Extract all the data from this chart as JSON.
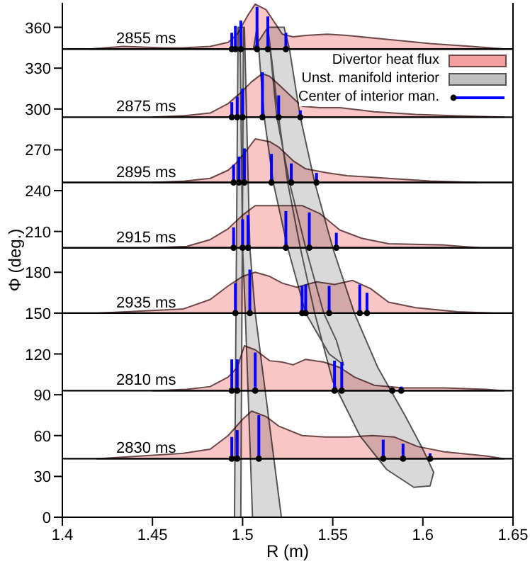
{
  "chart_data": {
    "type": "area",
    "xlabel": "R (m)",
    "ylabel": "Φ (deg.)",
    "xlim": [
      1.4,
      1.65
    ],
    "xticks": [
      1.4,
      1.45,
      1.5,
      1.55,
      1.6,
      1.65
    ],
    "ylim": [
      0,
      378
    ],
    "yticks": [
      0,
      30,
      60,
      90,
      120,
      150,
      180,
      210,
      240,
      270,
      300,
      330,
      360
    ],
    "legend": "top right",
    "ref_lines": [
      {
        "axis": "y",
        "value": 344,
        "label": "2855 ms",
        "color": "#000000"
      },
      {
        "axis": "y",
        "value": 294,
        "label": "2875 ms",
        "color": "#000000"
      },
      {
        "axis": "y",
        "value": 246,
        "label": "2895 ms",
        "color": "#000000"
      },
      {
        "axis": "y",
        "value": 198,
        "label": "2915 ms",
        "color": "#000000"
      },
      {
        "axis": "y",
        "value": 150,
        "label": "2935 ms",
        "color": "#000000"
      },
      {
        "axis": "y",
        "value": 93,
        "label": "2810 ms",
        "color": "#000000"
      },
      {
        "axis": "y",
        "value": 43,
        "label": "2830 ms",
        "color": "#000000"
      }
    ],
    "series": [
      {
        "name": "Divertor heat flux",
        "color": "#f4a0a0",
        "x": [
          1.415,
          1.434,
          1.456,
          1.467,
          1.482,
          1.492,
          1.497,
          1.503,
          1.507,
          1.513,
          1.518,
          1.522,
          1.528,
          1.535,
          1.547,
          1.558,
          1.581,
          1.604,
          1.627,
          1.646,
          null,
          1.45,
          1.467,
          1.482,
          1.492,
          1.499,
          1.505,
          1.511,
          1.515,
          1.52,
          1.528,
          1.533,
          1.543,
          1.554,
          1.573,
          1.596,
          1.619,
          1.645,
          null,
          1.45,
          1.468,
          1.482,
          1.492,
          1.497,
          1.503,
          1.507,
          1.515,
          1.52,
          1.528,
          1.535,
          1.547,
          1.558,
          1.581,
          1.604,
          1.63,
          null,
          1.45,
          1.469,
          1.482,
          1.492,
          1.5,
          1.507,
          1.52,
          1.533,
          1.543,
          1.554,
          1.566,
          1.581,
          1.612,
          1.632,
          null,
          1.419,
          1.467,
          1.482,
          1.492,
          1.5,
          1.507,
          1.515,
          1.522,
          1.53,
          1.541,
          1.551,
          1.561,
          1.571,
          1.581,
          1.596,
          1.619,
          1.64,
          null,
          1.45,
          1.469,
          1.482,
          1.492,
          1.497,
          1.501,
          1.507,
          1.515,
          1.522,
          1.528,
          1.535,
          1.545,
          1.554,
          1.562,
          1.573,
          1.589,
          1.612,
          1.635,
          1.645,
          null,
          1.419,
          1.467,
          1.482,
          1.492,
          1.5,
          1.505,
          1.513,
          1.52,
          1.533,
          1.546,
          1.559,
          1.572,
          1.584,
          1.597,
          1.612,
          1.635,
          1.645
        ],
        "values": [
          344,
          346,
          345,
          345,
          346,
          349,
          355,
          369,
          377,
          373,
          363,
          355,
          353,
          354,
          355,
          354,
          351,
          348,
          346,
          344,
          null,
          294,
          295,
          297,
          304,
          312,
          320,
          326,
          324,
          318,
          308,
          302,
          301,
          301,
          298,
          296,
          295,
          294,
          null,
          246,
          247,
          249,
          255,
          261,
          271,
          278,
          276,
          272,
          262,
          256,
          253,
          251,
          249,
          247,
          246,
          null,
          198,
          199,
          204,
          212,
          222,
          229,
          229,
          229,
          223,
          211,
          205,
          201,
          200,
          198,
          null,
          150,
          153,
          160,
          170,
          177,
          180,
          177,
          172,
          169,
          173,
          171,
          174,
          168,
          158,
          154,
          151,
          150,
          null,
          93,
          94,
          96,
          103,
          110,
          126,
          123,
          115,
          114,
          112,
          116,
          114,
          110,
          103,
          97,
          95,
          95,
          94,
          93,
          null,
          43,
          47,
          50,
          60,
          72,
          78,
          74,
          67,
          60,
          59,
          59,
          60,
          59,
          52,
          48,
          45,
          43
        ]
      },
      {
        "name": "Unst. manifold interior",
        "color": "#c0c0c0",
        "x": [
          1.4955,
          1.499,
          1.5005,
          1.4975,
          null,
          1.5055,
          1.5215,
          1.507,
          1.504,
          1.501,
          1.4985,
          1.5,
          1.5015,
          null,
          1.514,
          1.52,
          1.525,
          1.532,
          1.54,
          1.55,
          1.565,
          1.58,
          1.595,
          1.604,
          1.606,
          1.6,
          1.59,
          1.575,
          1.562,
          1.55,
          1.54,
          1.532,
          1.526,
          1.523,
          null,
          1.506,
          1.508,
          1.512,
          1.517,
          1.525,
          1.535,
          1.548,
          1.556,
          1.552,
          1.545,
          1.535,
          1.526,
          1.519,
          1.514
        ],
        "values": [
          0,
          0,
          360,
          360,
          null,
          0,
          0,
          150,
          198,
          360,
          360,
          198,
          150,
          null,
          360,
          294,
          246,
          198,
          150,
          100,
          60,
          35,
          22,
          23,
          33,
          50,
          75,
          110,
          150,
          198,
          246,
          294,
          344,
          360,
          null,
          344,
          360,
          294,
          246,
          198,
          150,
          120,
          112,
          130,
          150,
          198,
          246,
          294,
          360
        ]
      },
      {
        "type": "scatter",
        "name": "Center of interior man.",
        "color": "#000000",
        "marker": "circle",
        "x": [
          1.494,
          1.496,
          1.499,
          1.508,
          1.514,
          1.524,
          1.494,
          1.497,
          1.5,
          1.511,
          1.52,
          1.532,
          1.495,
          1.498,
          1.501,
          1.516,
          1.527,
          1.541,
          1.495,
          1.5,
          1.503,
          1.524,
          1.537,
          1.552,
          1.496,
          1.504,
          1.533,
          1.535,
          1.548,
          1.565,
          1.569,
          1.494,
          1.497,
          1.507,
          1.551,
          1.555,
          1.583,
          1.588,
          1.494,
          1.497,
          1.509,
          1.578,
          1.589,
          1.604
        ],
        "values": [
          344,
          344,
          344,
          344,
          344,
          344,
          294,
          294,
          294,
          294,
          294,
          294,
          246,
          246,
          246,
          246,
          246,
          246,
          198,
          198,
          198,
          198,
          198,
          198,
          150,
          150,
          150,
          150,
          150,
          150,
          150,
          93,
          93,
          93,
          93,
          93,
          93,
          93,
          43,
          43,
          43,
          43,
          43,
          43
        ],
        "errors": [
          [
            344,
            356
          ],
          [
            344,
            361
          ],
          [
            344,
            365
          ],
          [
            344,
            375
          ],
          [
            344,
            368
          ],
          [
            344,
            356
          ],
          [
            294,
            305
          ],
          [
            294,
            309
          ],
          [
            294,
            315
          ],
          [
            294,
            327
          ],
          [
            294,
            310
          ],
          [
            294,
            299
          ],
          [
            246,
            259
          ],
          [
            246,
            265
          ],
          [
            246,
            271
          ],
          [
            246,
            267
          ],
          [
            246,
            260
          ],
          [
            246,
            253
          ],
          [
            198,
            213
          ],
          [
            198,
            219
          ],
          [
            198,
            222
          ],
          [
            198,
            225
          ],
          [
            198,
            224
          ],
          [
            198,
            209
          ],
          [
            150,
            172
          ],
          [
            150,
            182
          ],
          [
            150,
            170
          ],
          [
            150,
            171
          ],
          [
            150,
            170
          ],
          [
            150,
            171
          ],
          [
            150,
            165
          ],
          [
            93,
            116
          ],
          [
            93,
            116
          ],
          [
            93,
            121
          ],
          [
            93,
            115
          ],
          [
            93,
            114
          ],
          [
            93,
            95
          ],
          [
            93,
            96
          ],
          [
            43,
            59
          ],
          [
            43,
            64
          ],
          [
            43,
            75
          ],
          [
            43,
            57
          ],
          [
            43,
            54
          ],
          [
            43,
            47
          ]
        ]
      }
    ]
  }
}
